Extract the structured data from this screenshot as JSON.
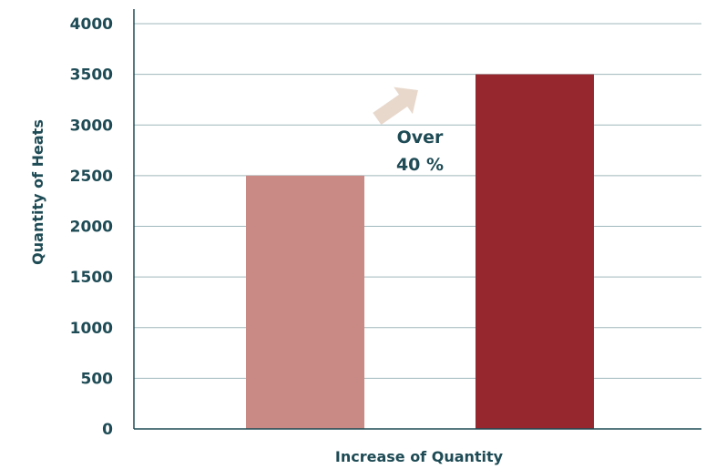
{
  "chart_data": {
    "type": "bar",
    "categories": [
      "",
      ""
    ],
    "values": [
      2500,
      3500
    ],
    "bar_colors": [
      "#c98984",
      "#96272e"
    ],
    "title": "",
    "xlabel": "Increase of Quantity",
    "ylabel": "Quantity of Heats",
    "ylim": [
      0,
      4000
    ],
    "yticks": [
      "0",
      "500",
      "1000",
      "1500",
      "2000",
      "2500",
      "3000",
      "3500",
      "4000"
    ],
    "grid": true,
    "annotation": {
      "lines": [
        "Over",
        "40 %"
      ],
      "arrow_color": "#e8d8cc"
    },
    "colors": {
      "axis": "#1e4b55",
      "grid": "#9fb7bb",
      "text": "#1e4b55"
    }
  }
}
